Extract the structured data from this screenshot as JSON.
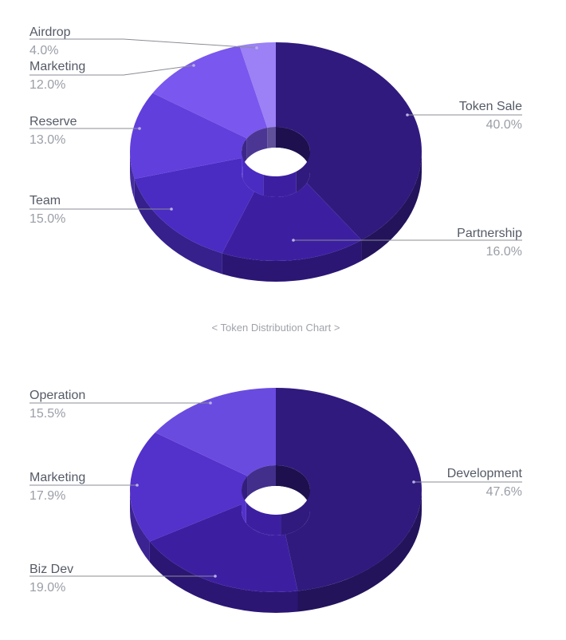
{
  "caption": "< Token Distribution Chart >",
  "chart_data": [
    {
      "type": "pie",
      "style": "3d-donut",
      "categories": [
        "Token Sale",
        "Partnership",
        "Team",
        "Reserve",
        "Marketing",
        "Airdrop"
      ],
      "values": [
        40.0,
        16.0,
        15.0,
        13.0,
        12.0,
        4.0
      ],
      "value_labels": [
        "40.0%",
        "16.0%",
        "15.0%",
        "13.0%",
        "12.0%",
        "4.0%"
      ],
      "colors": [
        "#301a7e",
        "#3c1fa1",
        "#4a2cc2",
        "#613fdc",
        "#7a57ee",
        "#9b80f6"
      ]
    },
    {
      "type": "pie",
      "style": "3d-donut",
      "categories": [
        "Development",
        "Biz Dev",
        "Marketing",
        "Operation"
      ],
      "values": [
        47.6,
        19.0,
        17.9,
        15.5
      ],
      "value_labels": [
        "47.6%",
        "19.0%",
        "17.9%",
        "15.5%"
      ],
      "colors": [
        "#301a7e",
        "#3c1fa1",
        "#5331cb",
        "#6a4be0"
      ]
    }
  ]
}
